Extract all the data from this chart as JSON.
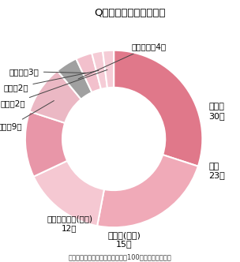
{
  "title": "Q．改善された症状は？",
  "footer": "（オーダーメイドピローご愛用者100人に聞きました）",
  "segments": [
    {
      "label": "肩こり\n30人",
      "value": 30,
      "color": "#e0788a"
    },
    {
      "label": "不眠\n23人",
      "value": 23,
      "color": "#f0aab8"
    },
    {
      "label": "寝心地(よい)\n15人",
      "value": 15,
      "color": "#f5c8d2"
    },
    {
      "label": "メンテナンス(よい)\n12人",
      "value": 12,
      "color": "#e896a8"
    },
    {
      "label": "首痛\n9人",
      "value": 9,
      "color": "#ebb8c4"
    },
    {
      "label": "少し不満\n4人",
      "value": 4,
      "color": "#a0a0a0"
    },
    {
      "label": "その他\n3人",
      "value": 3,
      "color": "#f2c0cc"
    },
    {
      "label": "腰痛\n2人",
      "value": 2,
      "color": "#f5ccd6"
    },
    {
      "label": "頭痛\n2人",
      "value": 2,
      "color": "#f5ccd6"
    }
  ],
  "bg_color": "#ffffff",
  "title_fontsize": 9.5,
  "label_fontsize": 8.0,
  "small_label_fontsize": 7.5,
  "footer_fontsize": 6.0,
  "donut_width": 0.42
}
